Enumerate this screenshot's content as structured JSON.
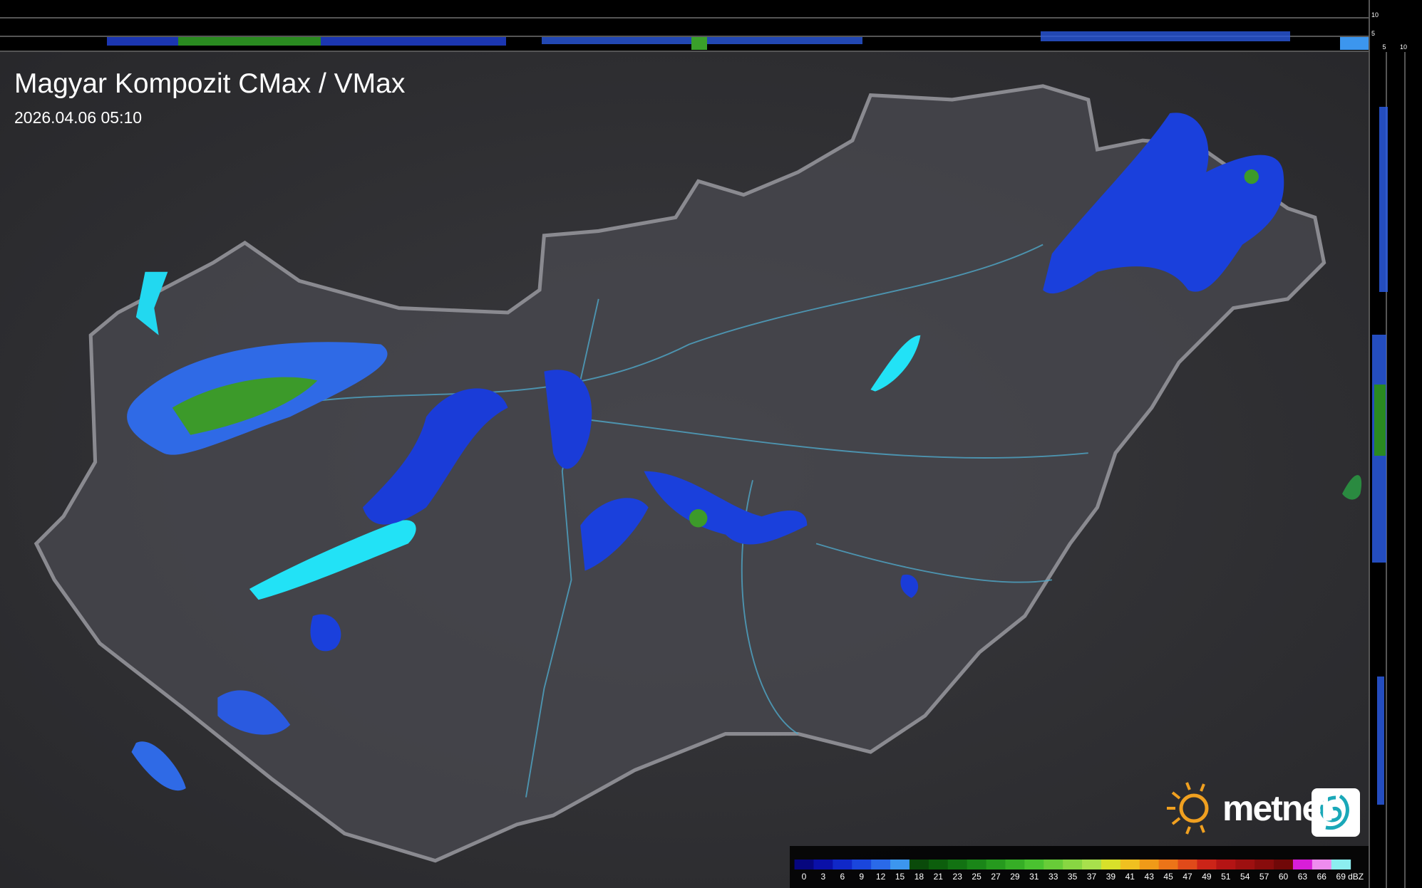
{
  "header": {
    "title": "Magyar Kompozit CMax / VMax",
    "timestamp": "2026.04.06 05:10"
  },
  "brand": "metnet",
  "profile_axes": {
    "top": [
      "10",
      "5"
    ],
    "right": [
      "5",
      "10"
    ]
  },
  "legend": {
    "unit": "dBZ",
    "labels": [
      "0",
      "3",
      "6",
      "9",
      "12",
      "15",
      "18",
      "21",
      "23",
      "25",
      "27",
      "29",
      "31",
      "33",
      "35",
      "37",
      "39",
      "41",
      "43",
      "45",
      "47",
      "49",
      "51",
      "54",
      "57",
      "60",
      "63",
      "66",
      "69"
    ],
    "colors": [
      "#06067e",
      "#0a10a8",
      "#1028c8",
      "#1a46dc",
      "#2a6ae8",
      "#3c96ee",
      "#0a4a0a",
      "#0c5e0c",
      "#127212",
      "#1a8618",
      "#269a1e",
      "#36ae26",
      "#4ac230",
      "#68cc38",
      "#88d642",
      "#a8e04c",
      "#d8e02a",
      "#f0c020",
      "#f09a18",
      "#ec7418",
      "#e04a1a",
      "#cc2418",
      "#b41414",
      "#9e1010",
      "#880c0c",
      "#700808",
      "#d81ed8",
      "#ee8cee",
      "#8ceef0"
    ]
  }
}
